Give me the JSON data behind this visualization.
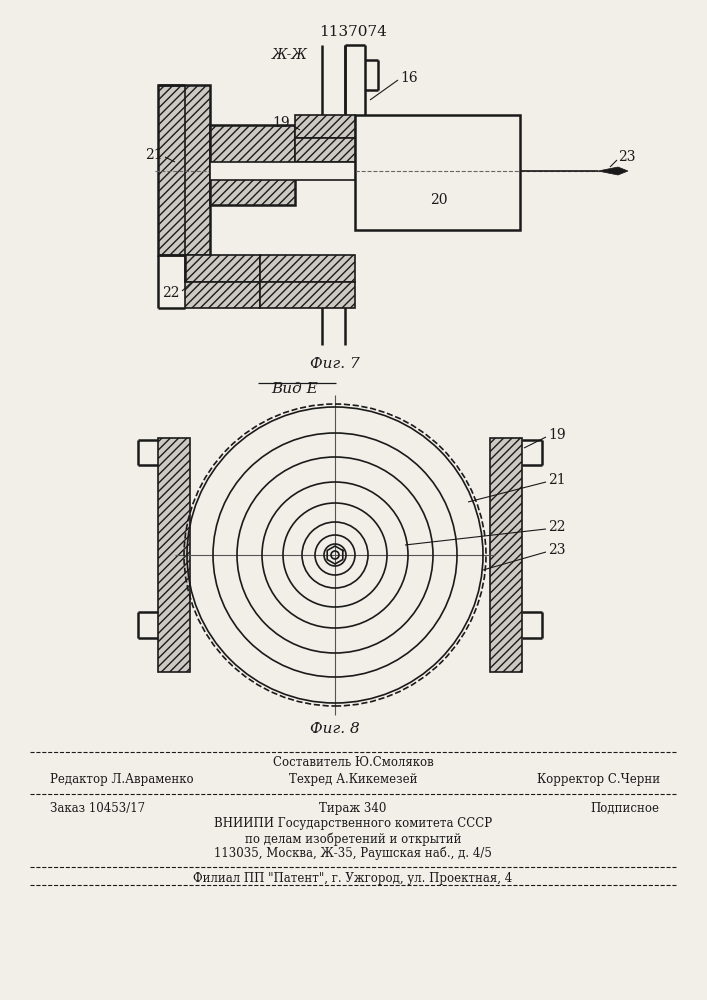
{
  "patent_number": "1137074",
  "background_color": "#f2efe9",
  "line_color": "#1a1a1a",
  "fig7_label": "Фиг. 7",
  "fig8_label": "Фиг. 8",
  "view_label": "Вид Е",
  "section_label": "Ж-Ж"
}
